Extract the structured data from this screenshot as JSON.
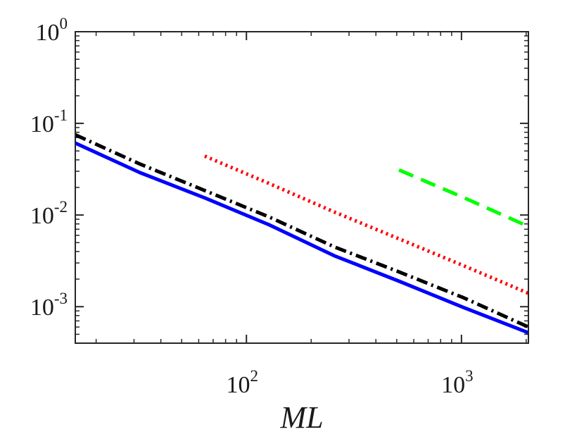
{
  "chart_data": {
    "type": "line",
    "title": "",
    "xlabel": "ML",
    "ylabel": "",
    "xscale": "log",
    "yscale": "log",
    "xlim": [
      16,
      2048
    ],
    "ylim": [
      0.0004,
      1
    ],
    "x_ticks": [
      {
        "value": 100,
        "base": "10",
        "exp": "2"
      },
      {
        "value": 1000,
        "base": "10",
        "exp": "3"
      }
    ],
    "y_ticks": [
      {
        "value": 0.001,
        "base": "10",
        "exp": "-3"
      },
      {
        "value": 0.01,
        "base": "10",
        "exp": "-2"
      },
      {
        "value": 0.1,
        "base": "10",
        "exp": "-1"
      },
      {
        "value": 1,
        "base": "10",
        "exp": "0"
      }
    ],
    "legend": null,
    "grid": false,
    "series": [
      {
        "name": "blue-solid",
        "color": "#0000ff",
        "dash": "solid",
        "x": [
          16,
          32,
          64,
          128,
          256,
          512,
          1024,
          2048
        ],
        "y": [
          0.061,
          0.029,
          0.0154,
          0.0078,
          0.0036,
          0.0019,
          0.00098,
          0.00052
        ]
      },
      {
        "name": "black-dashdot",
        "color": "#000000",
        "dash": "dashdot",
        "x": [
          16,
          32,
          64,
          128,
          256,
          512,
          1024,
          2048
        ],
        "y": [
          0.075,
          0.036,
          0.0185,
          0.0095,
          0.0045,
          0.0024,
          0.00125,
          0.0006
        ]
      },
      {
        "name": "red-dotted",
        "color": "#ff0000",
        "dash": "dotted",
        "x": [
          64,
          128,
          256,
          512,
          1024,
          2048
        ],
        "y": [
          0.044,
          0.022,
          0.0108,
          0.0055,
          0.0028,
          0.0014
        ]
      },
      {
        "name": "green-dashed",
        "color": "#00ff00",
        "dash": "dashed",
        "x": [
          512,
          1024,
          2048
        ],
        "y": [
          0.031,
          0.0155,
          0.0075
        ]
      }
    ]
  }
}
